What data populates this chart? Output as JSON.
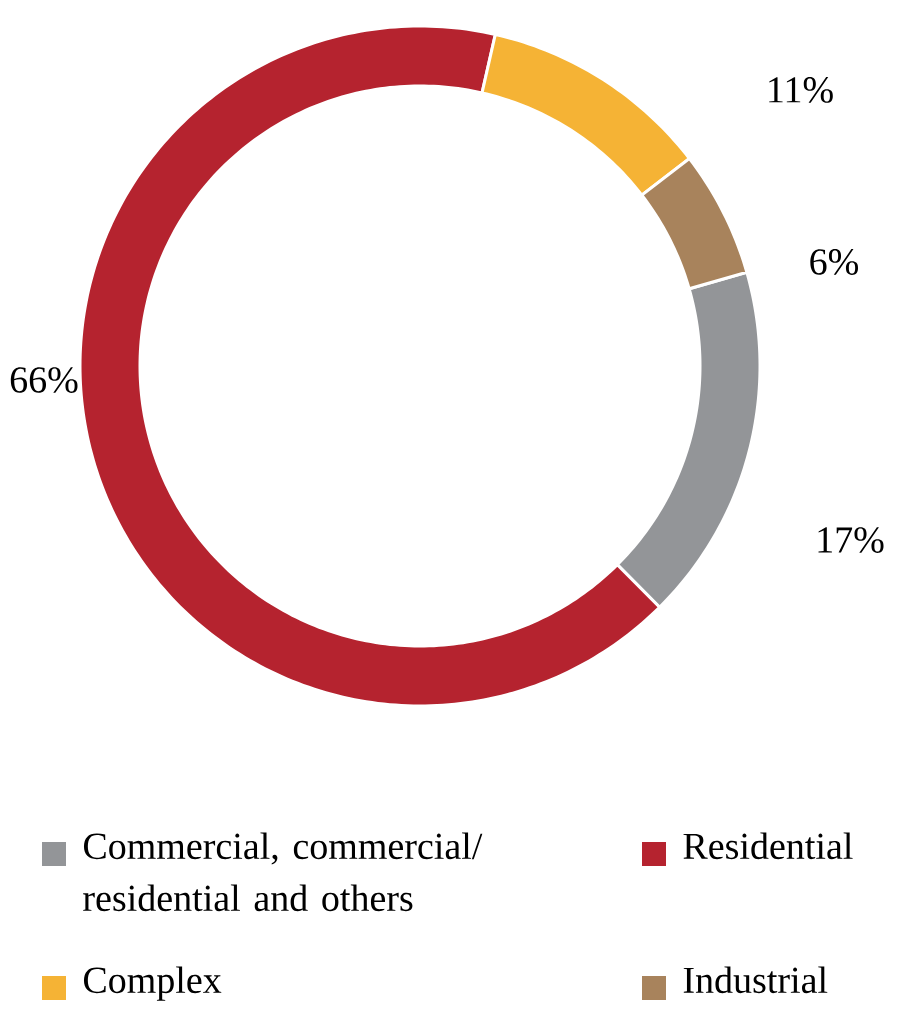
{
  "chart_data": {
    "type": "donut",
    "categories": [
      "Commercial, commercial/ residential and others",
      "Residential",
      "Complex",
      "Industrial"
    ],
    "values": [
      17,
      66,
      11,
      6
    ],
    "colors": [
      "#939598",
      "#b5232f",
      "#f5b335",
      "#a8835c"
    ],
    "value_labels": [
      "17%",
      "66%",
      "11%",
      "6%"
    ],
    "legend": "bottom"
  }
}
